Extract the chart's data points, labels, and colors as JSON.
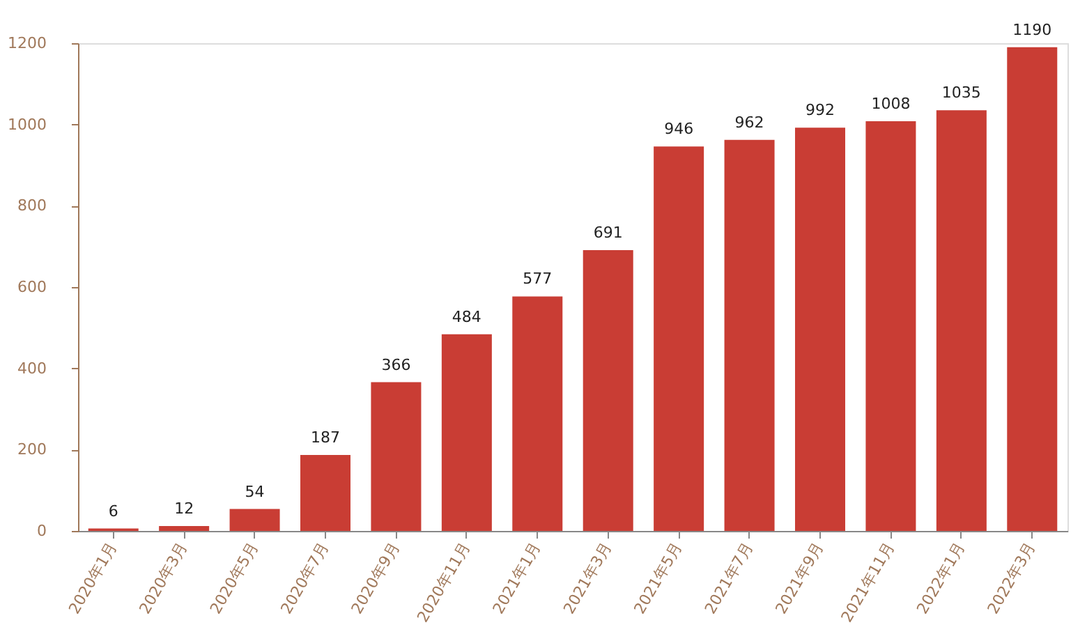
{
  "chart_data": {
    "type": "bar",
    "categories": [
      "2020年1月",
      "2020年3月",
      "2020年5月",
      "2020年7月",
      "2020年9月",
      "2020年11月",
      "2021年1月",
      "2021年3月",
      "2021年5月",
      "2021年7月",
      "2021年9月",
      "2021年11月",
      "2022年1月",
      "2022年3月"
    ],
    "values": [
      6,
      12,
      54,
      187,
      366,
      484,
      577,
      691,
      946,
      962,
      992,
      1008,
      1035,
      1190
    ],
    "color": "#c93d34",
    "ylim": [
      0,
      1200
    ],
    "yticks": [
      0,
      200,
      400,
      600,
      800,
      1000,
      1200
    ],
    "grid": false,
    "data_labels": true
  }
}
